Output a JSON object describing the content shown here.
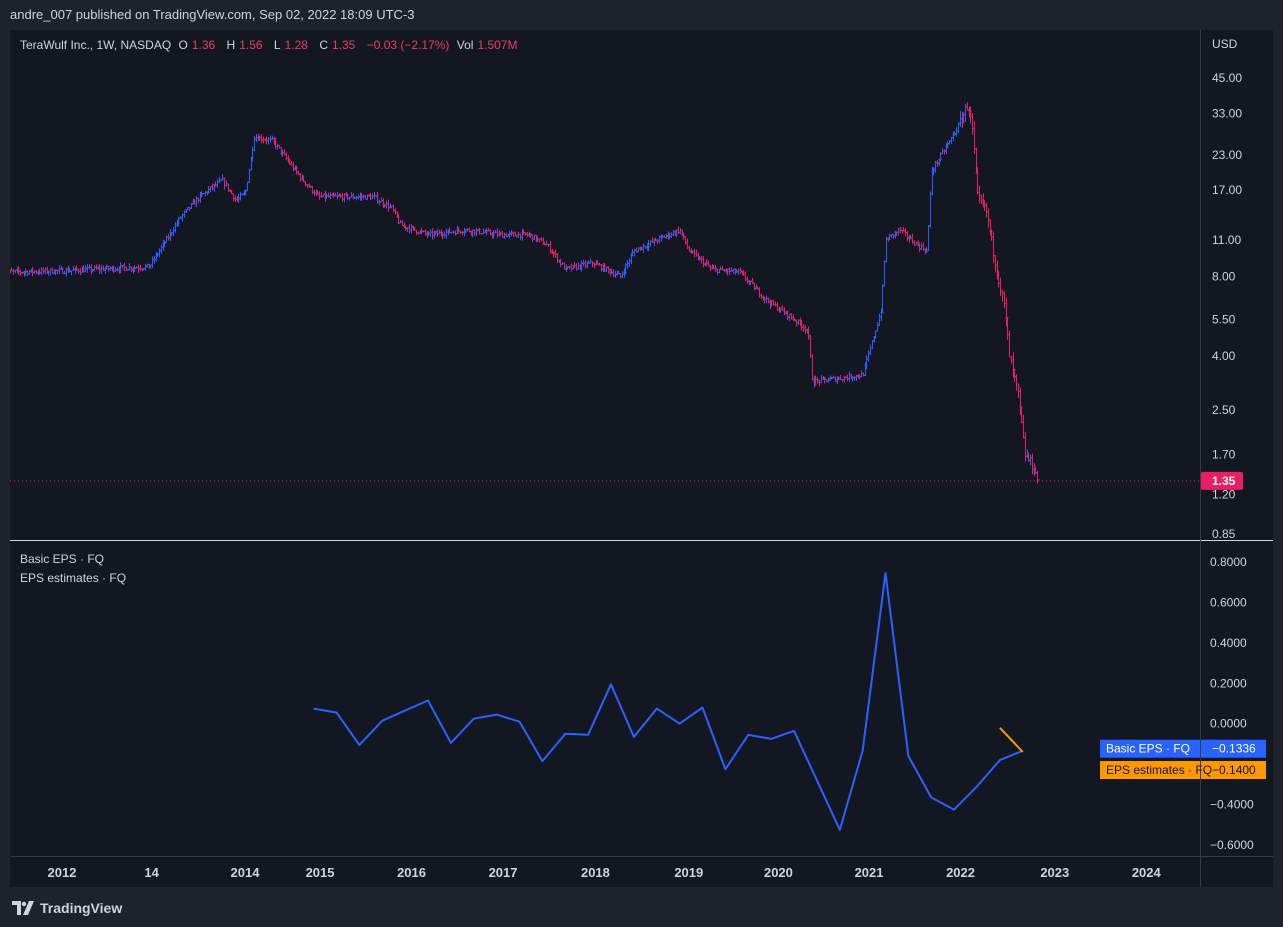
{
  "header": {
    "publisher": "andre_007 published on TradingView.com, Sep 02, 2022 18:09 UTC-3"
  },
  "legend": {
    "symbol": "TeraWulf Inc., 1W, NASDAQ",
    "o_label": "O",
    "o_value": "1.36",
    "h_label": "H",
    "h_value": "1.56",
    "l_label": "L",
    "l_value": "1.28",
    "c_label": "C",
    "c_value": "1.35",
    "change": "−0.03 (−2.17%)",
    "vol_label": "Vol",
    "vol_value": "1.507M"
  },
  "eps_legend": {
    "basic": "Basic EPS · FQ",
    "estimates": "EPS estimates · FQ"
  },
  "footer": {
    "brand": "TradingView"
  },
  "colors": {
    "up": "#2962ff",
    "down": "#e91e63",
    "eps": "#2962ff",
    "estimate": "#ff9800",
    "background": "#131722"
  },
  "chart_data": [
    {
      "type": "candlestick",
      "title": "TeraWulf Inc., 1W, NASDAQ",
      "y_scale": "log",
      "currency_label": "USD",
      "y_ticks": [
        "45.00",
        "33.00",
        "23.00",
        "17.00",
        "11.00",
        "8.00",
        "5.50",
        "4.00",
        "2.50",
        "1.70",
        "1.20",
        "0.85"
      ],
      "last_price": "1.35",
      "x_ticks": [
        "2012",
        "14",
        "2014",
        "2015",
        "2016",
        "2017",
        "2018",
        "2019",
        "2020",
        "2021",
        "2022",
        "2023",
        "2024"
      ],
      "price_path": [
        [
          2011.35,
          8.3
        ],
        [
          2012.0,
          8.4
        ],
        [
          2012.6,
          8.6
        ],
        [
          2012.95,
          8.7
        ],
        [
          2013.1,
          10.5
        ],
        [
          2013.3,
          13.5
        ],
        [
          2013.5,
          16.0
        ],
        [
          2013.75,
          18.5
        ],
        [
          2013.9,
          15.5
        ],
        [
          2014.0,
          16.5
        ],
        [
          2014.1,
          27.0
        ],
        [
          2014.3,
          26.0
        ],
        [
          2014.6,
          19.0
        ],
        [
          2014.8,
          16.0
        ],
        [
          2015.1,
          16.0
        ],
        [
          2015.4,
          16.0
        ],
        [
          2015.6,
          14.5
        ],
        [
          2015.7,
          12.5
        ],
        [
          2016.0,
          11.5
        ],
        [
          2016.4,
          12.0
        ],
        [
          2016.8,
          11.5
        ],
        [
          2017.1,
          11.5
        ],
        [
          2017.3,
          10.5
        ],
        [
          2017.5,
          8.5
        ],
        [
          2017.8,
          9.0
        ],
        [
          2018.1,
          8.0
        ],
        [
          2018.25,
          10.0
        ],
        [
          2018.5,
          11.0
        ],
        [
          2018.75,
          12.0
        ],
        [
          2018.85,
          10.0
        ],
        [
          2019.1,
          8.5
        ],
        [
          2019.4,
          8.3
        ],
        [
          2019.7,
          6.5
        ],
        [
          2020.0,
          5.5
        ],
        [
          2020.15,
          5.0
        ],
        [
          2020.2,
          3.2
        ],
        [
          2020.5,
          3.3
        ],
        [
          2020.75,
          3.4
        ],
        [
          2020.85,
          4.5
        ],
        [
          2020.95,
          6.0
        ],
        [
          2021.0,
          11.0
        ],
        [
          2021.15,
          12.0
        ],
        [
          2021.35,
          10.5
        ],
        [
          2021.45,
          10.0
        ],
        [
          2021.5,
          20.0
        ],
        [
          2021.7,
          26.0
        ],
        [
          2021.8,
          30.0
        ],
        [
          2021.9,
          36.0
        ],
        [
          2021.95,
          28.0
        ],
        [
          2022.0,
          16.0
        ],
        [
          2022.1,
          14.0
        ],
        [
          2022.2,
          9.0
        ],
        [
          2022.3,
          6.0
        ],
        [
          2022.35,
          4.0
        ],
        [
          2022.45,
          2.8
        ],
        [
          2022.52,
          1.7
        ],
        [
          2022.6,
          1.55
        ],
        [
          2022.67,
          1.35
        ]
      ]
    },
    {
      "type": "line",
      "y_ticks": [
        "0.8000",
        "0.6000",
        "0.4000",
        "0.2000",
        "0.0000",
        "−0.4000",
        "−0.6000"
      ],
      "ylim": [
        -0.6,
        0.8
      ],
      "series": [
        {
          "name": "Basic EPS · FQ",
          "last_value": "−0.1336",
          "x": [
            2014.75,
            2015.0,
            2015.25,
            2015.5,
            2015.75,
            2016.0,
            2016.25,
            2016.5,
            2016.75,
            2017.0,
            2017.25,
            2017.5,
            2017.75,
            2018.0,
            2018.25,
            2018.5,
            2018.75,
            2019.0,
            2019.25,
            2019.5,
            2019.75,
            2020.0,
            2020.25,
            2020.5,
            2020.75,
            2021.0,
            2021.25,
            2021.5,
            2021.75,
            2022.0,
            2022.25,
            2022.5
          ],
          "values": [
            0.075,
            0.055,
            -0.105,
            0.015,
            0.065,
            0.115,
            -0.095,
            0.025,
            0.045,
            0.01,
            -0.185,
            -0.05,
            -0.055,
            0.195,
            -0.065,
            0.075,
            0.0,
            0.08,
            -0.225,
            -0.055,
            -0.075,
            -0.035,
            -0.28,
            -0.525,
            -0.135,
            0.745,
            -0.16,
            -0.365,
            -0.425,
            -0.31,
            -0.18,
            -0.1336
          ]
        },
        {
          "name": "EPS estimates · FQ",
          "last_value": "−0.1400",
          "x": [
            2022.25,
            2022.5
          ],
          "values": [
            -0.02,
            -0.14
          ]
        }
      ]
    }
  ]
}
